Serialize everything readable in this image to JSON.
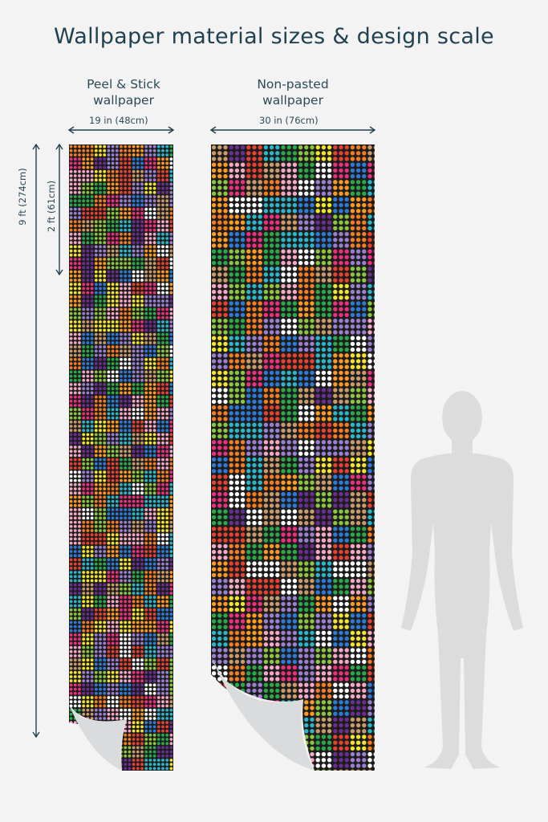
{
  "title": "Wallpaper material sizes & design scale",
  "panels": [
    {
      "label_line1": "Peel & Stick",
      "label_line2": "wallpaper",
      "width_label": "19 in (48cm)"
    },
    {
      "label_line1": "Non-pasted",
      "label_line2": "wallpaper",
      "width_label": "30 in (76cm)"
    }
  ],
  "height_labels": {
    "total": "9 ft (274cm)",
    "repeat": "2 ft (61cm)"
  },
  "colors": {
    "background": "#f3f3f3",
    "pattern_bg": "#1c1c1c",
    "dots": [
      "#f5e52a",
      "#ff9a1f",
      "#e8412f",
      "#ee2f7d",
      "#f7a7c6",
      "#9b7fd1",
      "#2d7bd8",
      "#2bb6c9",
      "#2ba84a",
      "#8cc63f",
      "#ffffff",
      "#c99a6a",
      "#f57d1f",
      "#6a2d91"
    ],
    "silhouette": "#dcdcdc",
    "accent": "#1f4150"
  },
  "icons": {
    "figure": "human-silhouette-icon",
    "curl": "page-curl-icon"
  }
}
